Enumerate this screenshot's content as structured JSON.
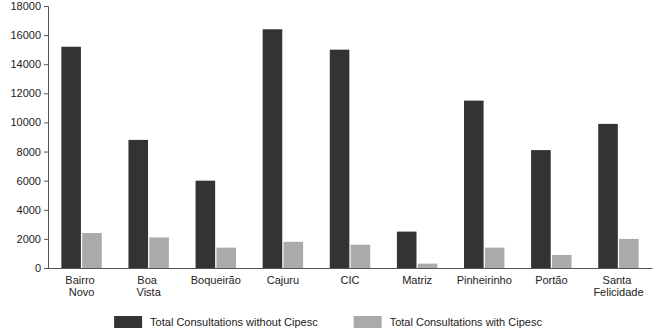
{
  "chart_data": {
    "type": "bar",
    "categories": [
      "Bairro Novo",
      "Boa Vista",
      "Boqueirão",
      "Cajuru",
      "CIC",
      "Matriz",
      "Pinheirinho",
      "Portão",
      "Santa Felicidade"
    ],
    "series": [
      {
        "name": "Total Consultations without Cipesc",
        "color": "#333333",
        "values": [
          15200,
          8800,
          6000,
          16400,
          15000,
          2500,
          11500,
          8100,
          9900
        ]
      },
      {
        "name": "Total Consultations with Cipesc",
        "color": "#aaaaaa",
        "values": [
          2400,
          2100,
          1400,
          1800,
          1600,
          300,
          1400,
          900,
          2000
        ]
      }
    ],
    "ylim": [
      0,
      18000
    ],
    "yticks": [
      0,
      2000,
      4000,
      6000,
      8000,
      10000,
      12000,
      14000,
      16000,
      18000
    ],
    "grid": false,
    "legend": "bottom"
  }
}
